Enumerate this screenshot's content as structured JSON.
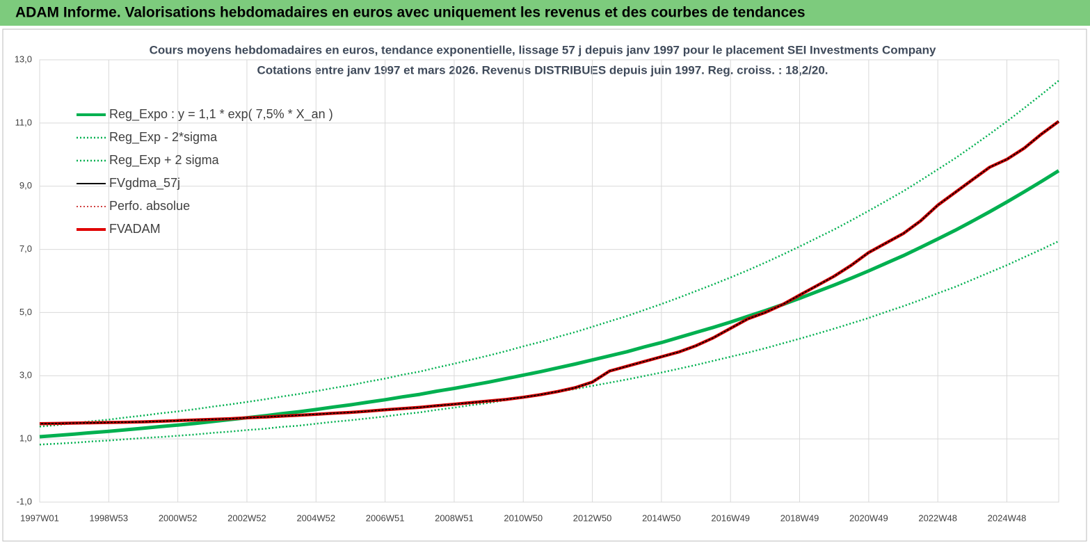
{
  "title": "ADAM Informe. Valorisations hebdomadaires en euros avec uniquement les revenus et des courbes de tendances",
  "chart_data": {
    "type": "line",
    "title": "Cours moyens hebdomadaires en euros, tendance exponentielle, lissage 57 j depuis janv 1997  pour le placement SEI Investments Company",
    "subtitle": "Cotations entre janv 1997 et mars 2026. Revenus DISTRIBUES depuis juin 1997. Reg. croiss. : 18,2/20.",
    "categories": [
      "1997W01",
      null,
      null,
      null,
      "1998W53",
      null,
      null,
      null,
      "2000W52",
      null,
      null,
      null,
      "2002W52",
      null,
      null,
      null,
      "2004W52",
      null,
      null,
      null,
      "2006W51",
      null,
      null,
      null,
      "2008W51",
      null,
      null,
      null,
      "2010W50",
      null,
      null,
      null,
      "2012W50",
      null,
      null,
      null,
      "2014W50",
      null,
      null,
      null,
      "2016W49",
      null,
      null,
      null,
      "2018W49",
      null,
      null,
      null,
      "2020W49",
      null,
      null,
      null,
      "2022W48",
      null,
      null,
      null,
      "2024W48",
      null,
      null,
      null
    ],
    "ylim": [
      -1,
      13
    ],
    "yticks": [
      {
        "value": -1,
        "label": "-1,0"
      },
      {
        "value": 1,
        "label": "1,0"
      },
      {
        "value": 3,
        "label": "3,0"
      },
      {
        "value": 5,
        "label": "5,0"
      },
      {
        "value": 7,
        "label": "7,0"
      },
      {
        "value": 9,
        "label": "9,0"
      },
      {
        "value": 11,
        "label": "11,0"
      },
      {
        "value": 13,
        "label": "13,0"
      }
    ],
    "grid": true,
    "legend": "upper left",
    "series": [
      {
        "name": "Reg_Expo : y = 1,1 * exp( 7,5% *  X_an )",
        "color": "#00b050",
        "dash": false,
        "values": [
          1.07,
          1.11,
          1.15,
          1.2,
          1.24,
          1.29,
          1.34,
          1.39,
          1.44,
          1.49,
          1.55,
          1.61,
          1.67,
          1.73,
          1.8,
          1.86,
          1.93,
          2.01,
          2.08,
          2.16,
          2.24,
          2.33,
          2.41,
          2.51,
          2.6,
          2.7,
          2.8,
          2.91,
          3.02,
          3.13,
          3.25,
          3.37,
          3.5,
          3.63,
          3.76,
          3.91,
          4.05,
          4.21,
          4.37,
          4.53,
          4.7,
          4.88,
          5.06,
          5.25,
          5.45,
          5.66,
          5.87,
          6.09,
          6.32,
          6.56,
          6.8,
          7.06,
          7.33,
          7.6,
          7.89,
          8.19,
          8.5,
          8.82,
          9.15,
          9.49
        ]
      },
      {
        "name": "Reg_Exp - 2*sigma",
        "color": "#00b050",
        "dash": true,
        "values": [
          0.82,
          0.85,
          0.88,
          0.92,
          0.95,
          0.99,
          1.03,
          1.06,
          1.1,
          1.14,
          1.19,
          1.23,
          1.28,
          1.32,
          1.38,
          1.42,
          1.48,
          1.54,
          1.59,
          1.65,
          1.71,
          1.78,
          1.84,
          1.92,
          1.99,
          2.07,
          2.14,
          2.23,
          2.31,
          2.39,
          2.49,
          2.58,
          2.68,
          2.78,
          2.88,
          2.99,
          3.1,
          3.22,
          3.34,
          3.47,
          3.6,
          3.73,
          3.87,
          4.02,
          4.17,
          4.33,
          4.49,
          4.66,
          4.83,
          5.02,
          5.2,
          5.4,
          5.61,
          5.81,
          6.04,
          6.27,
          6.5,
          6.75,
          7.0,
          7.26
        ]
      },
      {
        "name": "Reg_Exp + 2 sigma",
        "color": "#00b050",
        "dash": true,
        "values": [
          1.39,
          1.44,
          1.5,
          1.56,
          1.61,
          1.68,
          1.74,
          1.81,
          1.87,
          1.94,
          2.02,
          2.09,
          2.17,
          2.25,
          2.34,
          2.42,
          2.51,
          2.61,
          2.7,
          2.81,
          2.91,
          3.03,
          3.13,
          3.26,
          3.38,
          3.51,
          3.64,
          3.78,
          3.93,
          4.07,
          4.23,
          4.38,
          4.55,
          4.72,
          4.89,
          5.08,
          5.27,
          5.47,
          5.68,
          5.89,
          6.11,
          6.34,
          6.58,
          6.83,
          7.09,
          7.36,
          7.63,
          7.92,
          8.22,
          8.53,
          8.84,
          9.18,
          9.53,
          9.88,
          10.26,
          10.65,
          11.05,
          11.47,
          11.9,
          12.34
        ]
      },
      {
        "name": "FVgdma_57j",
        "color": "#000000",
        "dash": false,
        "values": [
          1.48,
          1.49,
          1.5,
          1.51,
          1.52,
          1.53,
          1.54,
          1.56,
          1.58,
          1.6,
          1.62,
          1.64,
          1.67,
          1.69,
          1.72,
          1.75,
          1.78,
          1.81,
          1.84,
          1.88,
          1.92,
          1.96,
          2.0,
          2.05,
          2.1,
          2.15,
          2.2,
          2.25,
          2.32,
          2.4,
          2.5,
          2.62,
          2.8,
          3.15,
          3.3,
          3.45,
          3.6,
          3.75,
          3.95,
          4.2,
          4.5,
          4.8,
          5.0,
          5.25,
          5.55,
          5.85,
          6.15,
          6.5,
          6.9,
          7.2,
          7.5,
          7.9,
          8.4,
          8.8,
          9.2,
          9.6,
          9.85,
          10.2,
          10.65,
          11.05
        ]
      },
      {
        "name": "Perfo. absolue",
        "color": "#c00000",
        "dash": true,
        "values": [
          1.48,
          1.49,
          1.5,
          1.51,
          1.52,
          1.53,
          1.54,
          1.56,
          1.58,
          1.6,
          1.62,
          1.64,
          1.67,
          1.69,
          1.72,
          1.75,
          1.78,
          1.81,
          1.84,
          1.88,
          1.92,
          1.96,
          2.0,
          2.05,
          2.1,
          2.15,
          2.2,
          2.25,
          2.32,
          2.4,
          2.5,
          2.62,
          2.8,
          3.15,
          3.3,
          3.45,
          3.6,
          3.75,
          3.95,
          4.2,
          4.5,
          4.8,
          5.0,
          5.25,
          5.55,
          5.85,
          6.15,
          6.5,
          6.9,
          7.2,
          7.5,
          7.9,
          8.4,
          8.8,
          9.2,
          9.6,
          9.85,
          10.2,
          10.65,
          11.05
        ]
      },
      {
        "name": "FVADAM",
        "color": "#e00000",
        "dash": false,
        "values": [
          1.48,
          1.49,
          1.5,
          1.51,
          1.52,
          1.53,
          1.54,
          1.56,
          1.58,
          1.6,
          1.62,
          1.64,
          1.67,
          1.69,
          1.72,
          1.75,
          1.78,
          1.81,
          1.84,
          1.88,
          1.92,
          1.96,
          2.0,
          2.05,
          2.1,
          2.15,
          2.2,
          2.25,
          2.32,
          2.4,
          2.5,
          2.62,
          2.8,
          3.15,
          3.3,
          3.45,
          3.6,
          3.75,
          3.95,
          4.2,
          4.5,
          4.8,
          5.0,
          5.25,
          5.55,
          5.85,
          6.15,
          6.5,
          6.9,
          7.2,
          7.5,
          7.9,
          8.4,
          8.8,
          9.2,
          9.6,
          9.85,
          10.2,
          10.65,
          11.05
        ]
      }
    ]
  }
}
